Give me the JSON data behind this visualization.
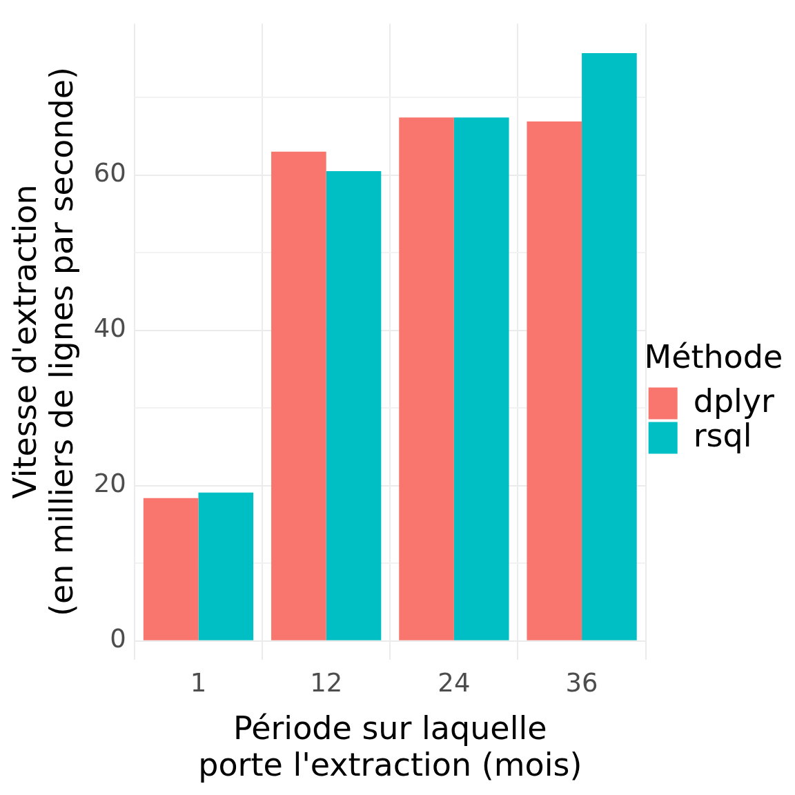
{
  "chart_data": {
    "type": "bar",
    "xlabel": "Période sur laquelle\nporte l'extraction (mois)",
    "ylabel": "Vitesse d'extraction\n(en milliers de lignes par seconde)",
    "legend_title": "Méthode",
    "categories": [
      "1",
      "12",
      "24",
      "36"
    ],
    "series": [
      {
        "name": "dplyr",
        "color": "#f8766d",
        "values": [
          18.4,
          63.0,
          67.4,
          66.9
        ]
      },
      {
        "name": "rsql",
        "color": "#00bfc4",
        "values": [
          19.1,
          60.5,
          67.4,
          75.7
        ]
      }
    ],
    "ylim": [
      -2.4,
      79.5
    ],
    "yticks": [
      0,
      {
        "value": 10,
        "label": null
      },
      20,
      {
        "value": 30,
        "label": null
      },
      40,
      {
        "value": 50,
        "label": null
      },
      60,
      {
        "value": 70,
        "label": null
      }
    ],
    "grid": true,
    "legend": "right"
  }
}
